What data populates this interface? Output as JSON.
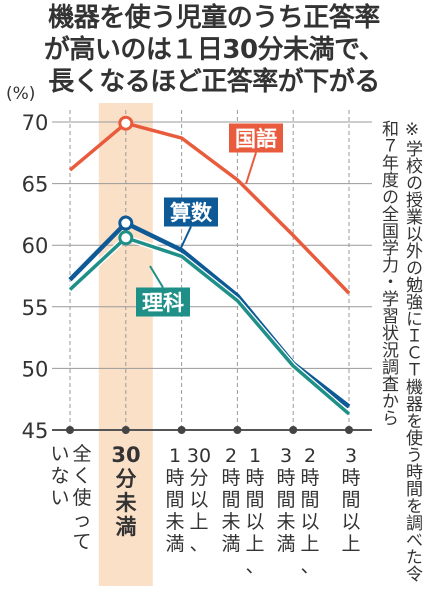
{
  "title_lines": [
    "機器を使う児童のうち正答率",
    "が高いのは１日30分未満で、",
    "長くなるほど正答率が下がる"
  ],
  "note": "※学校の授業以外の勉強にＩＣＴ機器を使う時間を調べた令和７年度の全国学力・学習状況調査から",
  "colors": {
    "kokugo": "#e85b3c",
    "sansu": "#0e5a96",
    "rika": "#1f9088",
    "highlight": "#fbe0c8",
    "axis": "#555555",
    "grid": "#9a9a9a"
  },
  "chart_data": {
    "type": "line",
    "ylabel": "(%)",
    "ylim": [
      45,
      70
    ],
    "yticks": [
      45,
      50,
      55,
      60,
      65,
      70
    ],
    "categories": [
      "全く使っていない",
      "30分未満",
      "1〜30分以上、時間未満",
      "2〜1時間以上、時間未満",
      "3〜2時間以上、時間未満",
      "3時間以上"
    ],
    "category_columns": [
      [
        "全く使って",
        "いない"
      ],
      [
        "30",
        "分未満"
      ],
      [
        "1",
        "時間未満"
      ],
      [
        "30",
        "分以上、"
      ],
      [
        "2",
        "時間未満"
      ],
      [
        "1",
        "時間以上、"
      ],
      [
        "3",
        "時間未満"
      ],
      [
        "2",
        "時間以上、"
      ],
      [
        "3",
        "時間以上"
      ]
    ],
    "highlight_index": 1,
    "series": [
      {
        "name": "国語",
        "color_key": "kokugo",
        "values": [
          66.1,
          69.9,
          68.7,
          65.3,
          60.8,
          56.1
        ]
      },
      {
        "name": "算数",
        "color_key": "sansu",
        "values": [
          57.2,
          61.8,
          59.6,
          55.9,
          50.4,
          46.9
        ]
      },
      {
        "name": "理科",
        "color_key": "rika",
        "values": [
          56.4,
          60.6,
          59.1,
          55.5,
          50.2,
          46.3
        ]
      }
    ]
  }
}
